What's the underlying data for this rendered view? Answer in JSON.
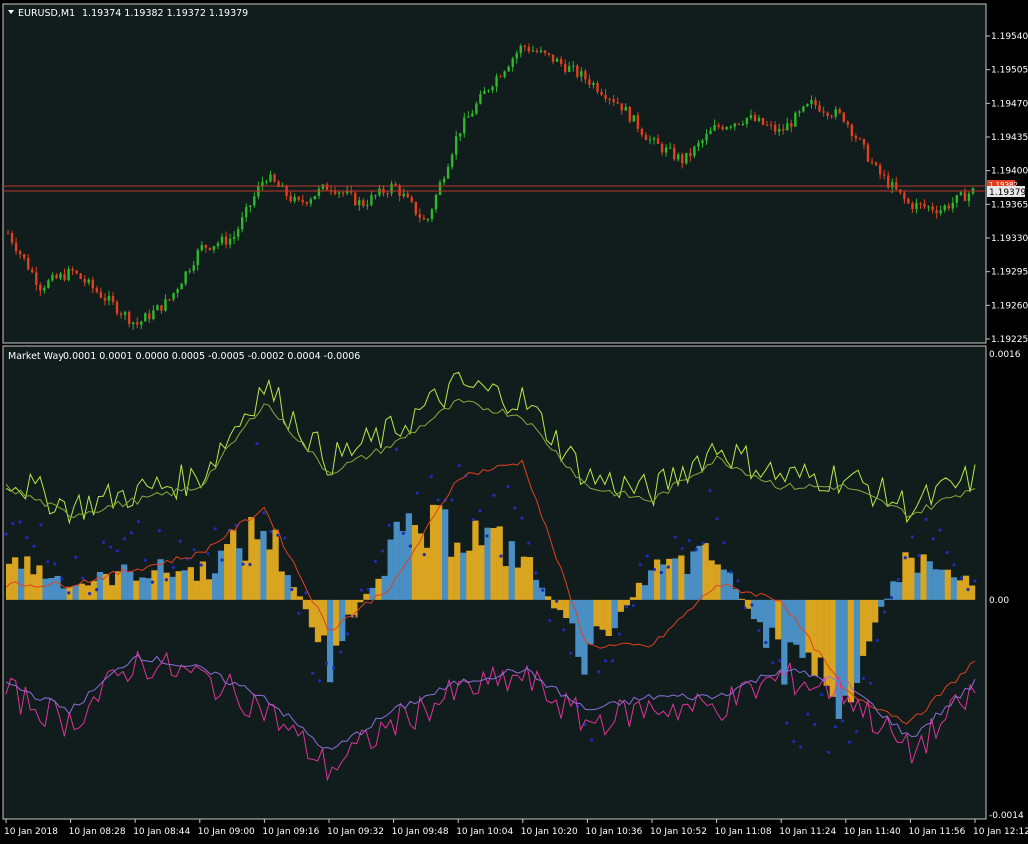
{
  "colors": {
    "background": "#000000",
    "pane_background": "#111c1c",
    "pane_border": "#c8c8c8",
    "candle_bull": "#2db82d",
    "candle_bear": "#e0401f",
    "bid_line": "#c0392b",
    "price_tag_bg": "#e8e8e8",
    "price_tag_red": "#e0401f",
    "hist_gold": "#d9a521",
    "hist_blue": "#4a8fc4",
    "dot_blue": "#1c2db0",
    "line_lime": "#b9e84a",
    "line_olive": "#8aa83c",
    "line_red": "#e0401f",
    "line_magenta": "#e0339a",
    "line_violet": "#8b6fd8",
    "text": "#ffffff"
  },
  "chart_header": {
    "arrow_icon": "triangle-down-icon",
    "symbol": "EURUSD,M1",
    "ohlc": "1.19374 1.19382 1.19372 1.19379"
  },
  "indicator_header": {
    "name": "Market Way",
    "values": "0.0001 0.0001 0.0000 0.0005 -0.0005 -0.0002 0.0004 -0.0006"
  },
  "price_axis": {
    "ticks": [
      "1.19540",
      "1.19505",
      "1.19470",
      "1.19435",
      "1.19400",
      "1.19365",
      "1.19330",
      "1.19295",
      "1.19260",
      "1.19225"
    ],
    "current_price": "1.19379",
    "red_tag": "1.19382"
  },
  "indicator_axis": {
    "ticks": [
      "0.0016",
      "0.00",
      "-0.0014"
    ]
  },
  "time_axis": {
    "ticks": [
      "10 Jan 2018",
      "10 Jan 08:28",
      "10 Jan 08:44",
      "10 Jan 09:00",
      "10 Jan 09:16",
      "10 Jan 09:32",
      "10 Jan 09:48",
      "10 Jan 10:04",
      "10 Jan 10:20",
      "10 Jan 10:36",
      "10 Jan 10:52",
      "10 Jan 11:08",
      "10 Jan 11:24",
      "10 Jan 11:40",
      "10 Jan 11:56",
      "10 Jan 12:12"
    ]
  },
  "chart_data": [
    {
      "type": "candlestick",
      "symbol": "EURUSD",
      "timeframe": "M1",
      "ylim": [
        1.19215,
        1.19565
      ],
      "x_start": "10 Jan 2018",
      "x_end": "10 Jan 12:12",
      "close_path": [
        {
          "t": "10 Jan 2018",
          "price": 1.19335
        },
        {
          "t": "10 Jan 08:20",
          "price": 1.1928
        },
        {
          "t": "10 Jan 08:28",
          "price": 1.19295
        },
        {
          "t": "10 Jan 08:36",
          "price": 1.19268
        },
        {
          "t": "10 Jan 08:44",
          "price": 1.1924
        },
        {
          "t": "10 Jan 08:52",
          "price": 1.19265
        },
        {
          "t": "10 Jan 09:00",
          "price": 1.1932
        },
        {
          "t": "10 Jan 09:08",
          "price": 1.1933
        },
        {
          "t": "10 Jan 09:16",
          "price": 1.19395
        },
        {
          "t": "10 Jan 09:24",
          "price": 1.19365
        },
        {
          "t": "10 Jan 09:32",
          "price": 1.19385
        },
        {
          "t": "10 Jan 09:40",
          "price": 1.19365
        },
        {
          "t": "10 Jan 09:48",
          "price": 1.19385
        },
        {
          "t": "10 Jan 09:56",
          "price": 1.19345
        },
        {
          "t": "10 Jan 10:04",
          "price": 1.1944
        },
        {
          "t": "10 Jan 10:12",
          "price": 1.1949
        },
        {
          "t": "10 Jan 10:20",
          "price": 1.1953
        },
        {
          "t": "10 Jan 10:28",
          "price": 1.19515
        },
        {
          "t": "10 Jan 10:36",
          "price": 1.19495
        },
        {
          "t": "10 Jan 10:44",
          "price": 1.1947
        },
        {
          "t": "10 Jan 10:52",
          "price": 1.1943
        },
        {
          "t": "10 Jan 11:00",
          "price": 1.1941
        },
        {
          "t": "10 Jan 11:08",
          "price": 1.19445
        },
        {
          "t": "10 Jan 11:16",
          "price": 1.19455
        },
        {
          "t": "10 Jan 11:24",
          "price": 1.1944
        },
        {
          "t": "10 Jan 11:32",
          "price": 1.1947
        },
        {
          "t": "10 Jan 11:40",
          "price": 1.19455
        },
        {
          "t": "10 Jan 11:48",
          "price": 1.194
        },
        {
          "t": "10 Jan 11:56",
          "price": 1.19365
        },
        {
          "t": "10 Jan 12:04",
          "price": 1.1936
        },
        {
          "t": "10 Jan 12:12",
          "price": 1.19379
        }
      ]
    },
    {
      "type": "histogram_with_lines",
      "name": "Market Way",
      "ylim": [
        -0.0014,
        0.0016
      ],
      "histogram": {
        "t": [
          "10 Jan 2018",
          "10 Jan 08:28",
          "10 Jan 08:44",
          "10 Jan 09:00",
          "10 Jan 09:16",
          "10 Jan 09:32",
          "10 Jan 09:48",
          "10 Jan 10:04",
          "10 Jan 10:20",
          "10 Jan 10:36",
          "10 Jan 10:52",
          "10 Jan 11:08",
          "10 Jan 11:24",
          "10 Jan 11:40",
          "10 Jan 11:56",
          "10 Jan 12:12"
        ],
        "values": [
          0.0003,
          0.0001,
          0.0002,
          0.0002,
          0.0005,
          -0.0004,
          0.0004,
          0.0005,
          0.0003,
          -0.0004,
          0.0002,
          0.0003,
          -0.0004,
          -0.0006,
          0.0003,
          0.0001
        ]
      },
      "series": [
        {
          "values": [
            0.0008,
            0.0006,
            0.0007,
            0.0008,
            0.0014,
            0.0009,
            0.0011,
            0.0014,
            0.0013,
            0.0008,
            0.0007,
            0.001,
            0.0008,
            0.0008,
            0.0006,
            0.0008
          ]
        },
        {
          "values": [
            0.0001,
            0.0001,
            0.0002,
            0.0003,
            0.0006,
            -0.0002,
            0.0001,
            0.0008,
            0.0009,
            -0.0003,
            -0.0003,
            0.0001,
            0.0,
            -0.0006,
            -0.0008,
            -0.0004
          ]
        },
        {
          "values": [
            -0.0006,
            -0.0008,
            -0.0004,
            -0.0005,
            -0.0007,
            -0.0011,
            -0.0008,
            -0.0006,
            -0.0005,
            -0.0008,
            -0.0007,
            -0.0007,
            -0.0005,
            -0.0006,
            -0.001,
            -0.0006
          ]
        }
      ]
    }
  ]
}
